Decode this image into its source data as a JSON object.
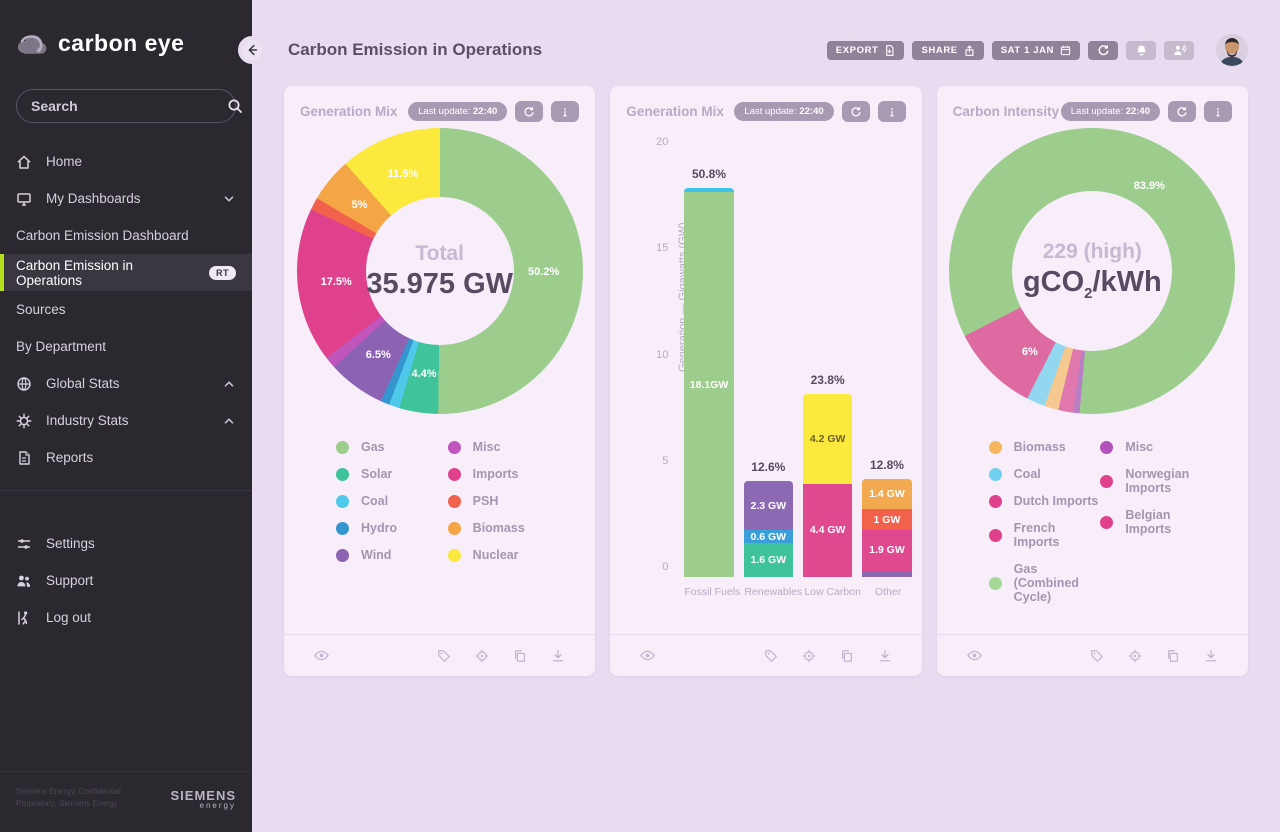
{
  "sidebar": {
    "logo_text": "carbon eye",
    "search_placeholder": "Search",
    "items": [
      {
        "label": "Home",
        "icon": "home"
      },
      {
        "label": "My Dashboards",
        "icon": "monitor",
        "chevron": "down"
      },
      {
        "label": "Carbon Emission Dashboard",
        "sub": true
      },
      {
        "label": "Carbon Emission in Operations",
        "sub": true,
        "active": true,
        "badge": "RT"
      },
      {
        "label": "Sources",
        "sub": true
      },
      {
        "label": "By Department",
        "sub": true
      },
      {
        "label": "Global Stats",
        "icon": "globe",
        "chevron": "up"
      },
      {
        "label": "Industry Stats",
        "icon": "gear",
        "chevron": "up"
      },
      {
        "label": "Reports",
        "icon": "report"
      }
    ],
    "bottom_items": [
      {
        "label": "Settings",
        "icon": "sliders"
      },
      {
        "label": "Support",
        "icon": "people"
      },
      {
        "label": "Log out",
        "icon": "logout"
      }
    ],
    "legal_line1": "Siemens Energy, Confidential",
    "legal_line2": "Proprietary, Siemens Energy",
    "brand": "SIEMENS",
    "brand_sub": "energy"
  },
  "header": {
    "title": "Carbon Emission in Operations",
    "export_label": "EXPORT",
    "share_label": "SHARE",
    "date_label": "SAT 1 JAN"
  },
  "card_footer_icons": {
    "left": [
      "eye"
    ],
    "right": [
      "tag",
      "target",
      "copy",
      "download"
    ]
  },
  "last_update_label": "Last update:",
  "chart_data": [
    {
      "type": "pie",
      "title": "Generation Mix",
      "last_update": "22:40",
      "center_sub": "Total",
      "center_main": "35.975 GW",
      "start_angle": 0,
      "hole": 148,
      "label_radius": 104,
      "slices": [
        {
          "name": "Gas",
          "value": 50.2,
          "color": "#9ccd8d",
          "label": "50.2%"
        },
        {
          "name": "Solar",
          "value": 4.4,
          "color": "#3ec39b",
          "label": "4.4%"
        },
        {
          "name": "Coal",
          "value": 1.2,
          "color": "#4ec9ea",
          "label": null
        },
        {
          "name": "Hydro",
          "value": 1.0,
          "color": "#3596cf",
          "label": null
        },
        {
          "name": "Wind",
          "value": 6.5,
          "color": "#8c63b2",
          "label": "6.5%"
        },
        {
          "name": "Misc",
          "value": 1.3,
          "color": "#c055bb",
          "label": null
        },
        {
          "name": "Imports",
          "value": 17.5,
          "color": "#e0418c",
          "label": "17.5%"
        },
        {
          "name": "PSH",
          "value": 1.4,
          "color": "#f2614b",
          "label": null
        },
        {
          "name": "Biomass",
          "value": 5.0,
          "color": "#f4a546",
          "label": "5%"
        },
        {
          "name": "Nuclear",
          "value": 11.5,
          "color": "#fbe93d",
          "label": "11.5%"
        }
      ],
      "legend_left": [
        {
          "label": "Gas",
          "color": "#9ccd8d"
        },
        {
          "label": "Solar",
          "color": "#3ec39b"
        },
        {
          "label": "Coal",
          "color": "#4ec9ea"
        },
        {
          "label": "Hydro",
          "color": "#3596cf"
        },
        {
          "label": "Wind",
          "color": "#8c63b2"
        }
      ],
      "legend_right": [
        {
          "label": "Misc",
          "color": "#c055bb"
        },
        {
          "label": "Imports",
          "color": "#e0418c"
        },
        {
          "label": "PSH",
          "color": "#f2614b"
        },
        {
          "label": "Biomass",
          "color": "#f4a546"
        },
        {
          "label": "Nuclear",
          "color": "#fbe93d"
        }
      ]
    },
    {
      "type": "bar",
      "title": "Generation Mix",
      "last_update": "22:40",
      "ylabel": "Generation — Gigawatts (GW)",
      "ylim": [
        0,
        20
      ],
      "yticks": [
        0,
        5,
        10,
        15,
        20
      ],
      "categories": [
        "Fossil Fuels",
        "Renewables",
        "Low Carbon",
        "Other"
      ],
      "bars": [
        {
          "category": "Fossil Fuels",
          "pct_label": "50.8%",
          "segments": [
            {
              "name": "Gas",
              "value": 18.1,
              "color": "#9ccd8d",
              "label": "18.1GW"
            },
            {
              "name": "Coal",
              "value": 0.2,
              "color": "#3fc3e9",
              "label": null
            }
          ]
        },
        {
          "category": "Renewables",
          "pct_label": "12.6%",
          "segments": [
            {
              "name": "Solar",
              "value": 1.6,
              "color": "#3ec39b",
              "label": "1.6 GW"
            },
            {
              "name": "Hydro",
              "value": 0.6,
              "color": "#3a9fd9",
              "label": "0.6 GW"
            },
            {
              "name": "Wind",
              "value": 2.3,
              "color": "#8d69b4",
              "label": "2.3 GW"
            }
          ]
        },
        {
          "category": "Low Carbon",
          "pct_label": "23.8%",
          "segments": [
            {
              "name": "Imports",
              "value": 4.4,
              "color": "#e0488f",
              "label": "4.4 GW"
            },
            {
              "name": "Nuclear",
              "value": 4.2,
              "color": "#fbe93d",
              "label": "4.2 GW",
              "dark_text": true
            }
          ]
        },
        {
          "category": "Other",
          "pct_label": "12.8%",
          "segments": [
            {
              "name": "Misc",
              "value": 0.3,
              "color": "#8d69b4",
              "label": null
            },
            {
              "name": "Imports",
              "value": 1.9,
              "color": "#e0488f",
              "label": "1.9 GW"
            },
            {
              "name": "PSH",
              "value": 1.0,
              "color": "#f2614b",
              "label": "1 GW"
            },
            {
              "name": "Biomass",
              "value": 1.4,
              "color": "#f3a950",
              "label": "1.4 GW"
            }
          ]
        }
      ]
    },
    {
      "type": "pie",
      "title": "Carbon Intensity",
      "last_update": "22:40",
      "center_sub": "229 (high)",
      "center_main_prefix": "gCO",
      "center_main_sub": "2",
      "center_main_suffix": "/kWh",
      "start_angle": 185,
      "hole": 160,
      "label_radius": 102,
      "slices": [
        {
          "name": "Misc",
          "value": 0.7,
          "color": "#b780c4",
          "label": null
        },
        {
          "name": "Belgian Imports",
          "value": 1.7,
          "color": "#e077ad",
          "label": null
        },
        {
          "name": "Biomass",
          "value": 1.6,
          "color": "#f4c88e",
          "label": null
        },
        {
          "name": "Coal",
          "value": 2.1,
          "color": "#92d6ef",
          "label": null
        },
        {
          "name": "Dutch Imports",
          "value": 6.0,
          "color": "#dd6ba1",
          "label": "6%"
        },
        {
          "name": "French Imports",
          "value": 2.0,
          "color": "#dd6ba1",
          "label": null
        },
        {
          "name": "Norwegian Imports",
          "value": 2.0,
          "color": "#dd6ba1",
          "label": null
        },
        {
          "name": "Gas (Combined Cycle)",
          "value": 83.9,
          "color": "#9ccd8d",
          "label": "83.9%"
        }
      ],
      "legend_left": [
        {
          "label": "Biomass",
          "color": "#f5b55e"
        },
        {
          "label": "Coal",
          "color": "#6fd1ef"
        },
        {
          "label": "Dutch Imports",
          "color": "#e0418c"
        },
        {
          "label": "French Imports",
          "color": "#e0418c"
        },
        {
          "label": "Gas (Combined Cycle)",
          "color": "#a5d796"
        }
      ],
      "legend_right": [
        {
          "label": "Misc",
          "color": "#b153b8"
        },
        {
          "label": "Norwegian Imports",
          "color": "#e0418c"
        },
        {
          "label": "Belgian Imports",
          "color": "#e0418c"
        }
      ]
    }
  ]
}
